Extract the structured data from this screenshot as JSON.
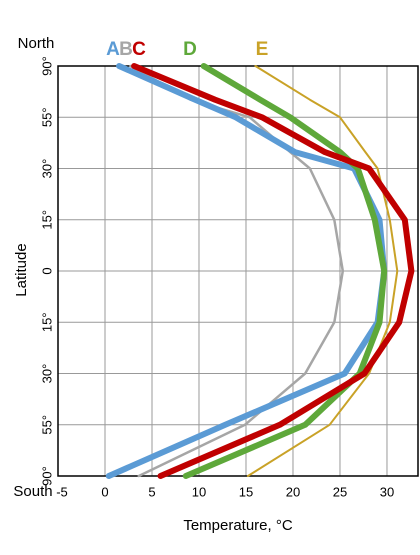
{
  "chart_data": {
    "type": "line",
    "x_label": "Temperature, °C",
    "y_label": "Latitude",
    "north_label": "North",
    "south_label": "South",
    "xlim": [
      -5,
      33.3
    ],
    "xticks": [
      -5,
      0,
      5,
      10,
      15,
      20,
      25,
      30
    ],
    "ylim": [
      -90,
      90
    ],
    "yticks": [
      {
        "value": 90,
        "label": "90°"
      },
      {
        "value": 55,
        "label": "55°"
      },
      {
        "value": 30,
        "label": "30°"
      },
      {
        "value": 15,
        "label": "15°"
      },
      0,
      {
        "value": -15,
        "label": "15°"
      },
      {
        "value": -30,
        "label": "30°"
      },
      {
        "value": -55,
        "label": "55°"
      },
      {
        "value": -90,
        "label": "90°"
      }
    ],
    "grid": true,
    "latitudes": [
      90,
      67,
      55,
      38,
      30,
      15,
      0,
      -15,
      -30,
      -55,
      -90
    ],
    "series": [
      {
        "name": "A",
        "color": "#5b9bd5",
        "values": [
          1.5,
          9.6,
          13.9,
          20.2,
          26.5,
          29.2,
          29.7,
          29,
          25.5,
          12.8,
          0.4
        ]
      },
      {
        "name": "B",
        "color": "#a6a6a6",
        "values": [
          2.7,
          9.1,
          15.4,
          19.7,
          21.8,
          24.4,
          25.3,
          24.4,
          21.3,
          14.9,
          3.6
        ]
      },
      {
        "name": "C",
        "color": "#c00000",
        "values": [
          3.1,
          11.7,
          16.7,
          23.4,
          28.1,
          31.9,
          32.6,
          31.3,
          27.6,
          18.6,
          5.9
        ]
      },
      {
        "name": "D",
        "color": "#5ea83a",
        "values": [
          10.5,
          16.5,
          19.7,
          25,
          26.9,
          28.7,
          29.7,
          29.2,
          27.1,
          21.3,
          8.6
        ]
      },
      {
        "name": "E",
        "color": "#c9a227",
        "values": [
          16,
          21.8,
          25,
          27.7,
          29,
          30.3,
          31.1,
          30.3,
          28.1,
          23.9,
          15.2
        ]
      }
    ]
  }
}
